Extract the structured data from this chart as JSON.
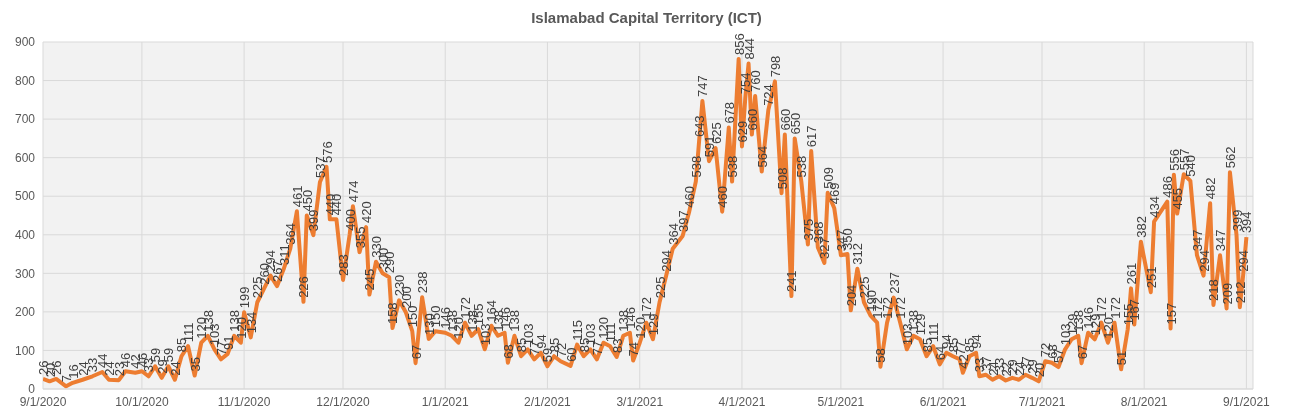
{
  "chart_data": {
    "type": "line",
    "title": "Islamabad Capital Territory (ICT)",
    "x": [
      "2020-09-01",
      "2020-09-03",
      "2020-09-05",
      "2020-09-08",
      "2020-09-10",
      "2020-09-13",
      "2020-09-16",
      "2020-09-19",
      "2020-09-21",
      "2020-09-24",
      "2020-09-26",
      "2020-09-29",
      "2020-10-01",
      "2020-10-03",
      "2020-10-05",
      "2020-10-07",
      "2020-10-09",
      "2020-10-11",
      "2020-10-13",
      "2020-10-15",
      "2020-10-17",
      "2020-10-19",
      "2020-10-21",
      "2020-10-23",
      "2020-10-25",
      "2020-10-27",
      "2020-10-29",
      "2020-10-31",
      "2020-11-01",
      "2020-11-03",
      "2020-11-05",
      "2020-11-07",
      "2020-11-09",
      "2020-11-11",
      "2020-11-13",
      "2020-11-15",
      "2020-11-17",
      "2020-11-19",
      "2020-11-20",
      "2020-11-22",
      "2020-11-24",
      "2020-11-26",
      "2020-11-27",
      "2020-11-29",
      "2020-12-01",
      "2020-12-03",
      "2020-12-04",
      "2020-12-06",
      "2020-12-08",
      "2020-12-09",
      "2020-12-11",
      "2020-12-13",
      "2020-12-15",
      "2020-12-16",
      "2020-12-18",
      "2020-12-20",
      "2020-12-22",
      "2020-12-23",
      "2020-12-25",
      "2020-12-27",
      "2020-12-29",
      "2021-01-01",
      "2021-01-03",
      "2021-01-05",
      "2021-01-07",
      "2021-01-09",
      "2021-01-11",
      "2021-01-13",
      "2021-01-15",
      "2021-01-17",
      "2021-01-19",
      "2021-01-20",
      "2021-01-22",
      "2021-01-24",
      "2021-01-26",
      "2021-01-28",
      "2021-01-30",
      "2021-02-01",
      "2021-02-03",
      "2021-02-05",
      "2021-02-08",
      "2021-02-10",
      "2021-02-12",
      "2021-02-14",
      "2021-02-16",
      "2021-02-18",
      "2021-02-20",
      "2021-02-22",
      "2021-02-24",
      "2021-02-26",
      "2021-02-27",
      "2021-03-01",
      "2021-03-03",
      "2021-03-05",
      "2021-03-07",
      "2021-03-09",
      "2021-03-11",
      "2021-03-14",
      "2021-03-16",
      "2021-03-18",
      "2021-03-19",
      "2021-03-20",
      "2021-03-22",
      "2021-03-24",
      "2021-03-26",
      "2021-03-28",
      "2021-03-29",
      "2021-03-31",
      "2021-04-01",
      "2021-04-02",
      "2021-04-03",
      "2021-04-04",
      "2021-04-05",
      "2021-04-07",
      "2021-04-09",
      "2021-04-11",
      "2021-04-13",
      "2021-04-14",
      "2021-04-16",
      "2021-04-17",
      "2021-04-19",
      "2021-04-21",
      "2021-04-22",
      "2021-04-24",
      "2021-04-26",
      "2021-04-27",
      "2021-04-29",
      "2021-05-01",
      "2021-05-03",
      "2021-05-04",
      "2021-05-06",
      "2021-05-08",
      "2021-05-10",
      "2021-05-12",
      "2021-05-13",
      "2021-05-15",
      "2021-05-17",
      "2021-05-19",
      "2021-05-21",
      "2021-05-23",
      "2021-05-25",
      "2021-05-27",
      "2021-05-29",
      "2021-05-31",
      "2021-06-02",
      "2021-06-04",
      "2021-06-06",
      "2021-06-07",
      "2021-06-09",
      "2021-06-11",
      "2021-06-12",
      "2021-06-14",
      "2021-06-16",
      "2021-06-18",
      "2021-06-20",
      "2021-06-22",
      "2021-06-24",
      "2021-06-26",
      "2021-06-28",
      "2021-06-30",
      "2021-07-02",
      "2021-07-04",
      "2021-07-06",
      "2021-07-08",
      "2021-07-10",
      "2021-07-12",
      "2021-07-13",
      "2021-07-15",
      "2021-07-17",
      "2021-07-19",
      "2021-07-21",
      "2021-07-23",
      "2021-07-25",
      "2021-07-27",
      "2021-07-28",
      "2021-07-29",
      "2021-07-31",
      "2021-08-03",
      "2021-08-04",
      "2021-08-08",
      "2021-08-09",
      "2021-08-10",
      "2021-08-11",
      "2021-08-13",
      "2021-08-15",
      "2021-08-17",
      "2021-08-19",
      "2021-08-21",
      "2021-08-22",
      "2021-08-24",
      "2021-08-26",
      "2021-08-27",
      "2021-08-29",
      "2021-08-30",
      "2021-08-31",
      "2021-09-01"
    ],
    "values": [
      26,
      20,
      26,
      7,
      16,
      24,
      33,
      44,
      24,
      23,
      46,
      42,
      46,
      33,
      59,
      29,
      59,
      24,
      85,
      111,
      35,
      120,
      138,
      103,
      77,
      91,
      138,
      120,
      199,
      134,
      225,
      260,
      294,
      267,
      311,
      364,
      461,
      226,
      450,
      399,
      537,
      576,
      440,
      440,
      283,
      400,
      474,
      355,
      420,
      245,
      330,
      300,
      290,
      158,
      230,
      200,
      150,
      67,
      238,
      130,
      150,
      146,
      138,
      120,
      172,
      138,
      155,
      103,
      164,
      138,
      146,
      68,
      138,
      85,
      103,
      77,
      94,
      59,
      85,
      72,
      60,
      115,
      85,
      103,
      77,
      120,
      111,
      83,
      138,
      146,
      74,
      120,
      172,
      129,
      225,
      294,
      364,
      397,
      460,
      538,
      643,
      747,
      591,
      625,
      460,
      678,
      538,
      856,
      629,
      754,
      844,
      660,
      760,
      564,
      724,
      798,
      508,
      660,
      241,
      650,
      538,
      375,
      617,
      368,
      327,
      509,
      469,
      347,
      350,
      204,
      312,
      225,
      190,
      172,
      58,
      172,
      237,
      172,
      103,
      138,
      129,
      85,
      111,
      64,
      94,
      85,
      77,
      42,
      85,
      94,
      33,
      37,
      24,
      33,
      22,
      29,
      24,
      37,
      29,
      20,
      72,
      68,
      57,
      103,
      129,
      138,
      67,
      146,
      129,
      172,
      120,
      172,
      51,
      155,
      261,
      167,
      382,
      251,
      434,
      486,
      157,
      556,
      455,
      557,
      540,
      347,
      294,
      482,
      218,
      347,
      209,
      562,
      399,
      212,
      294,
      394
    ],
    "color": "#ed7d31",
    "data_labels": true,
    "marker": "none",
    "line_style": "solid",
    "grid": true,
    "legend": false,
    "xlim": [
      "2020-09-01",
      "2021-09-03"
    ],
    "xticks": [
      {
        "value": "2020-09-01",
        "label": "9/1/2020"
      },
      {
        "value": "2020-10-01",
        "label": "10/1/2020"
      },
      {
        "value": "2020-11-01",
        "label": "11/1/2020"
      },
      {
        "value": "2020-12-01",
        "label": "12/1/2020"
      },
      {
        "value": "2021-01-01",
        "label": "1/1/2021"
      },
      {
        "value": "2021-02-01",
        "label": "2/1/2021"
      },
      {
        "value": "2021-03-01",
        "label": "3/1/2021"
      },
      {
        "value": "2021-04-01",
        "label": "4/1/2021"
      },
      {
        "value": "2021-05-01",
        "label": "5/1/2021"
      },
      {
        "value": "2021-06-01",
        "label": "6/1/2021"
      },
      {
        "value": "2021-07-01",
        "label": "7/1/2021"
      },
      {
        "value": "2021-08-01",
        "label": "8/1/2021"
      },
      {
        "value": "2021-09-01",
        "label": "9/1/2021"
      }
    ],
    "ylim": [
      0,
      900
    ],
    "yticks": [
      0,
      100,
      200,
      300,
      400,
      500,
      600,
      700,
      800,
      900
    ]
  }
}
